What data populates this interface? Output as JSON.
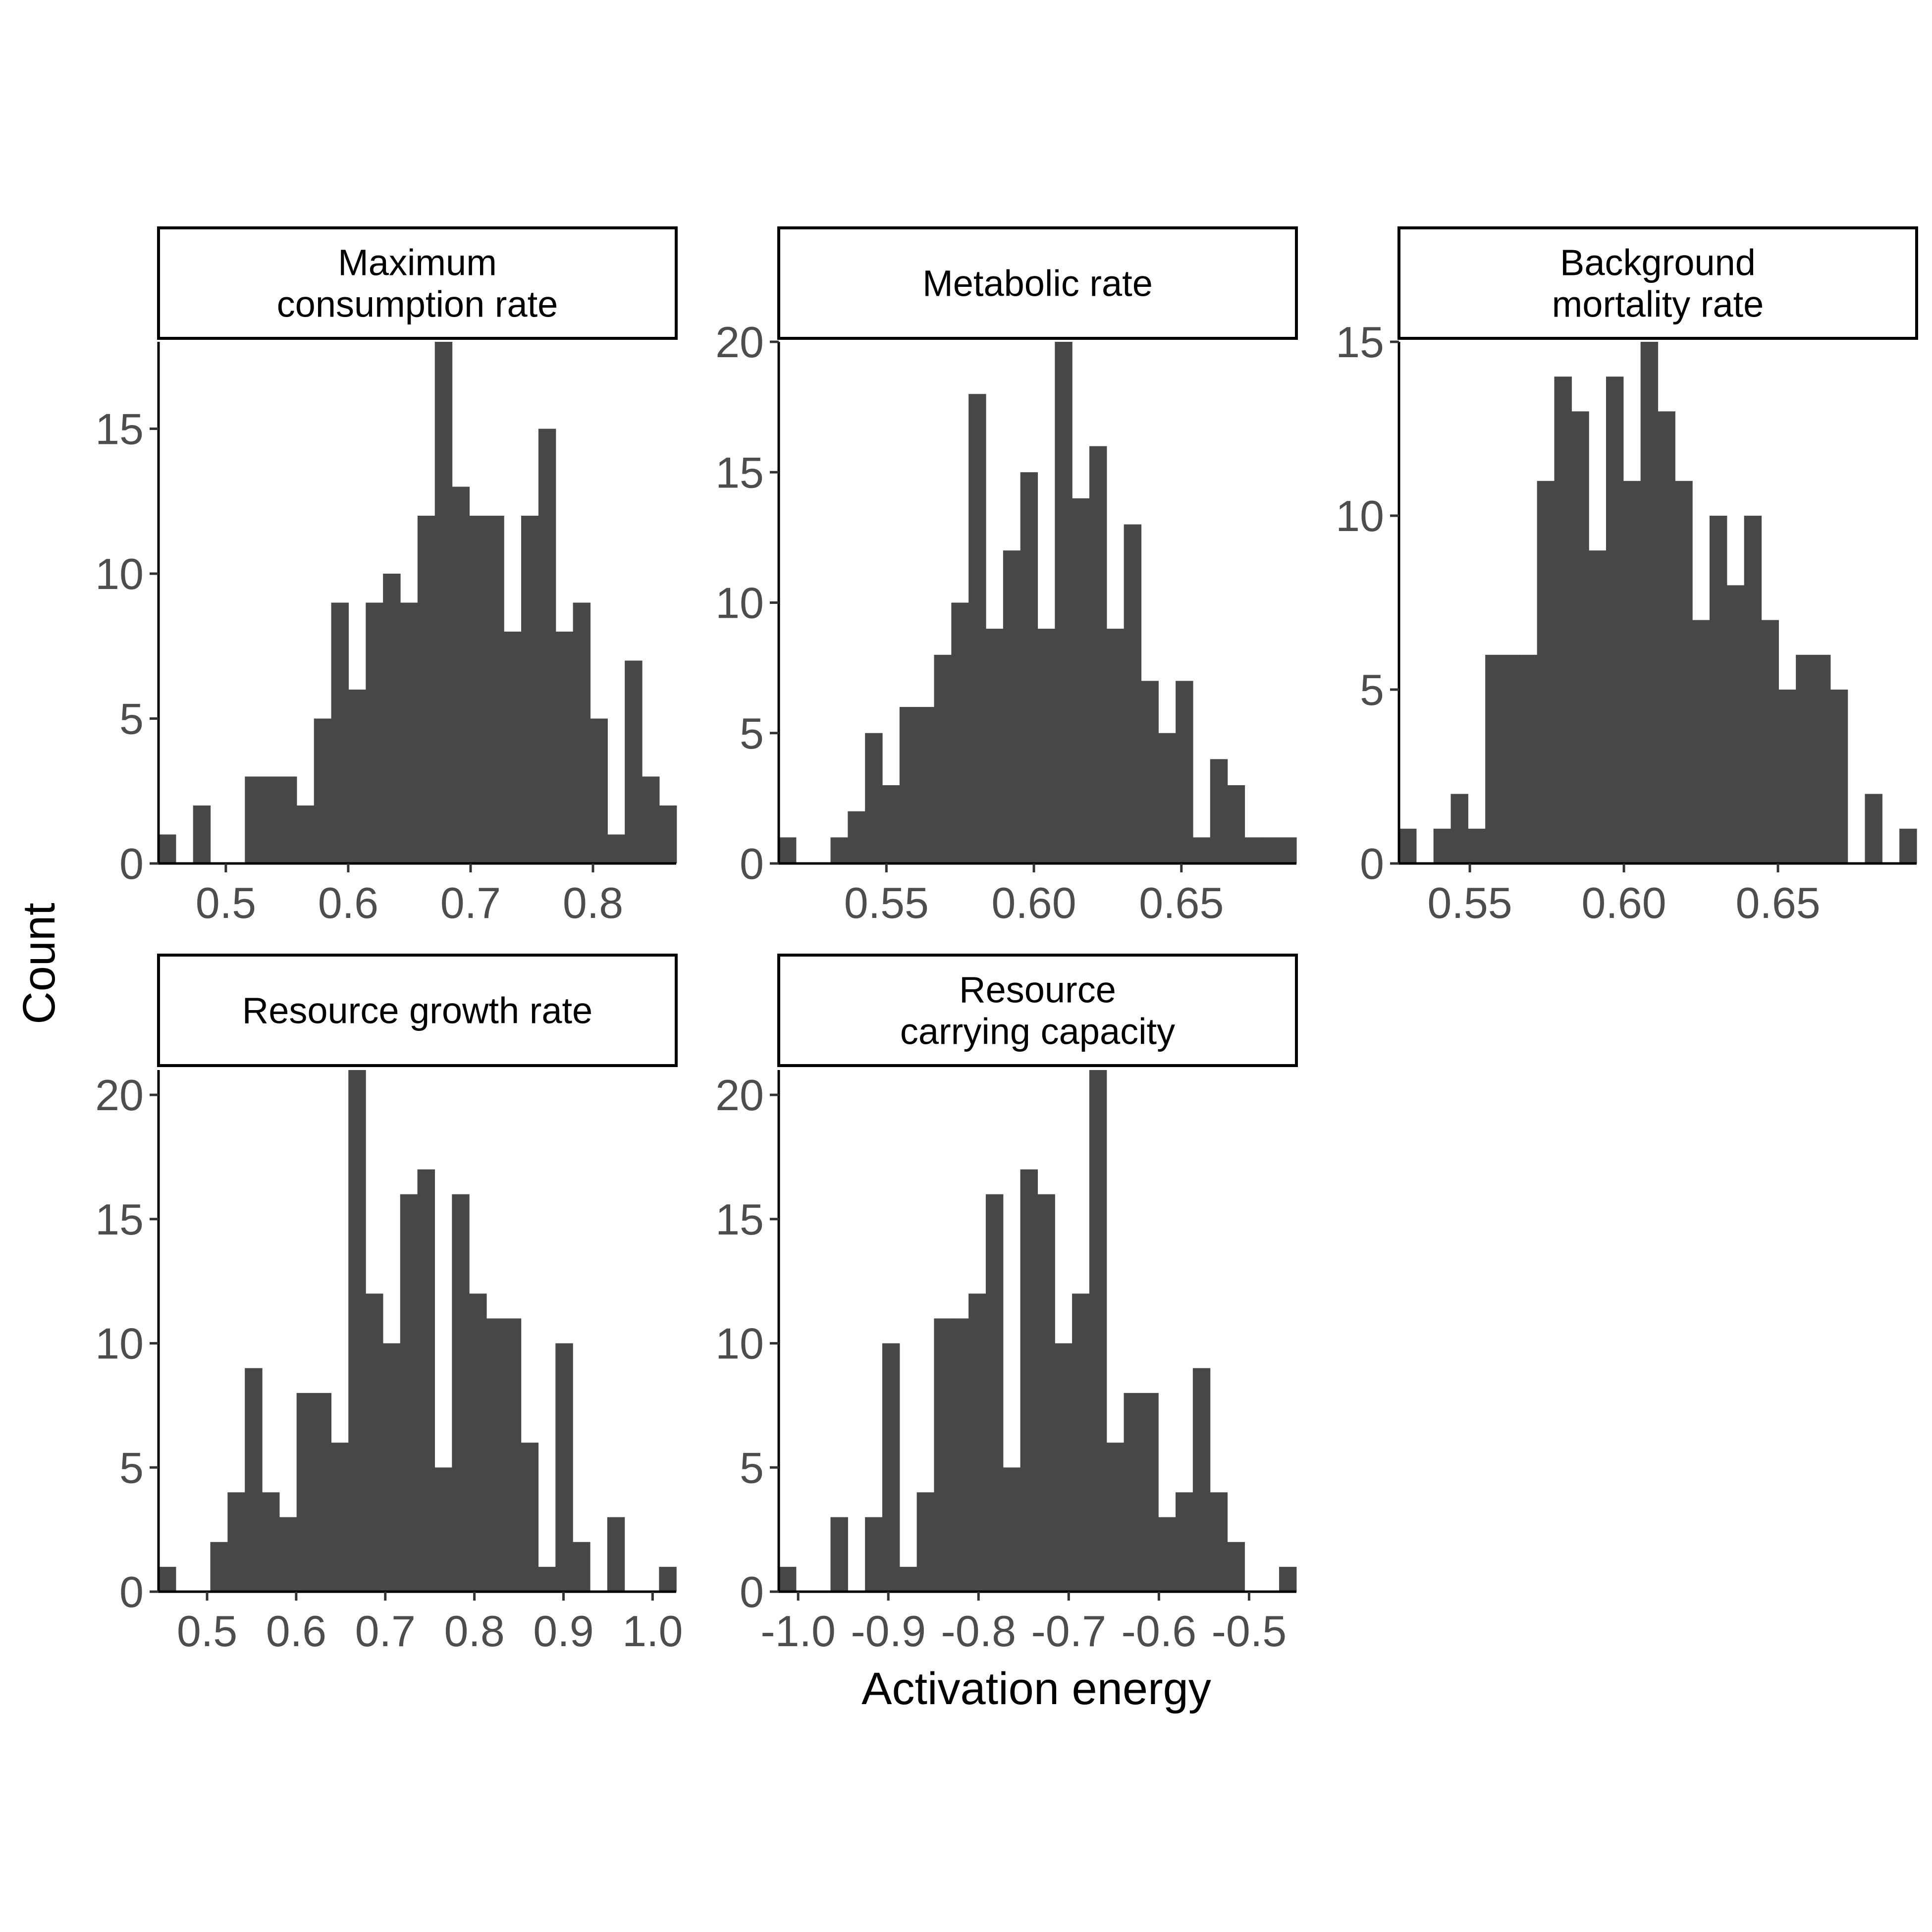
{
  "figure": {
    "xlabel": "Activation energy",
    "ylabel": "Count",
    "bar_color": "#474747"
  },
  "chart_data": [
    {
      "type": "bar",
      "panel": "Maximum consumption rate",
      "title_lines": [
        "Maximum",
        "consumption rate"
      ],
      "x_range": [
        0.445,
        0.868
      ],
      "x_ticks": [
        0.5,
        0.6,
        0.7,
        0.8
      ],
      "x_tick_labels": [
        "0.5",
        "0.6",
        "0.7",
        "0.8"
      ],
      "y_range": [
        0,
        18
      ],
      "y_ticks": [
        0,
        5,
        10,
        15
      ],
      "y_tick_labels": [
        "0",
        "5",
        "10",
        "15"
      ],
      "bin_start": 0.445,
      "bin_width": 0.01411,
      "counts": [
        1,
        0,
        2,
        0,
        0,
        3,
        3,
        3,
        2,
        5,
        9,
        6,
        9,
        10,
        9,
        12,
        18,
        13,
        12,
        12,
        8,
        12,
        15,
        8,
        9,
        5,
        1,
        7,
        3,
        2
      ]
    },
    {
      "type": "bar",
      "panel": "Metabolic rate",
      "title_lines": [
        "Metabolic rate"
      ],
      "x_range": [
        0.5135,
        0.689
      ],
      "x_ticks": [
        0.55,
        0.6,
        0.65
      ],
      "x_tick_labels": [
        "0.55",
        "0.60",
        "0.65"
      ],
      "y_range": [
        0,
        20
      ],
      "y_ticks": [
        0,
        5,
        10,
        15,
        20
      ],
      "y_tick_labels": [
        "0",
        "5",
        "10",
        "15",
        "20"
      ],
      "bin_start": 0.5135,
      "bin_width": 0.00585,
      "counts": [
        1,
        0,
        0,
        1,
        2,
        5,
        3,
        6,
        6,
        8,
        10,
        18,
        9,
        12,
        15,
        9,
        20,
        14,
        16,
        9,
        13,
        7,
        5,
        7,
        1,
        4,
        3,
        1,
        1,
        1
      ]
    },
    {
      "type": "bar",
      "panel": "Background mortality rate",
      "title_lines": [
        "Background",
        "mortality rate"
      ],
      "x_range": [
        0.527,
        0.695
      ],
      "x_ticks": [
        0.55,
        0.6,
        0.65
      ],
      "x_tick_labels": [
        "0.55",
        "0.60",
        "0.65"
      ],
      "y_range": [
        0,
        15
      ],
      "y_ticks": [
        0,
        5,
        10,
        15
      ],
      "y_tick_labels": [
        "0",
        "5",
        "10",
        "15"
      ],
      "bin_start": 0.527,
      "bin_width": 0.0056,
      "counts": [
        1,
        0,
        1,
        2,
        1,
        6,
        6,
        6,
        11,
        14,
        13,
        9,
        14,
        11,
        15,
        13,
        11,
        7,
        10,
        8,
        10,
        7,
        5,
        6,
        6,
        5,
        0,
        2,
        0,
        1
      ]
    },
    {
      "type": "bar",
      "panel": "Resource growth rate",
      "title_lines": [
        "Resource growth rate"
      ],
      "x_range": [
        0.4455,
        1.0265
      ],
      "x_ticks": [
        0.5,
        0.6,
        0.7,
        0.8,
        0.9,
        1.0
      ],
      "x_tick_labels": [
        "0.5",
        "0.6",
        "0.7",
        "0.8",
        "0.9",
        "1.0"
      ],
      "y_range": [
        0,
        21
      ],
      "y_ticks": [
        0,
        5,
        10,
        15,
        20
      ],
      "y_tick_labels": [
        "0",
        "5",
        "10",
        "15",
        "20"
      ],
      "bin_start": 0.4455,
      "bin_width": 0.01937,
      "counts": [
        1,
        0,
        0,
        2,
        4,
        9,
        4,
        3,
        8,
        8,
        6,
        21,
        12,
        10,
        16,
        17,
        5,
        16,
        12,
        11,
        11,
        6,
        1,
        10,
        2,
        0,
        3,
        0,
        0,
        1
      ]
    },
    {
      "type": "bar",
      "panel": "Resource carrying capacity",
      "title_lines": [
        "Resource",
        "carrying capacity"
      ],
      "x_range": [
        -1.0215,
        -0.4475
      ],
      "x_ticks": [
        -1.0,
        -0.9,
        -0.8,
        -0.7,
        -0.6,
        -0.5
      ],
      "x_tick_labels": [
        "-1.0",
        "-0.9",
        "-0.8",
        "-0.7",
        "-0.6",
        "-0.5"
      ],
      "y_range": [
        0,
        21
      ],
      "y_ticks": [
        0,
        5,
        10,
        15,
        20
      ],
      "y_tick_labels": [
        "0",
        "5",
        "10",
        "15",
        "20"
      ],
      "bin_start": -1.0215,
      "bin_width": 0.01913,
      "counts": [
        1,
        0,
        0,
        3,
        0,
        3,
        10,
        1,
        4,
        11,
        11,
        12,
        16,
        5,
        17,
        16,
        10,
        12,
        21,
        6,
        8,
        8,
        3,
        4,
        9,
        4,
        2,
        0,
        0,
        1
      ]
    }
  ]
}
